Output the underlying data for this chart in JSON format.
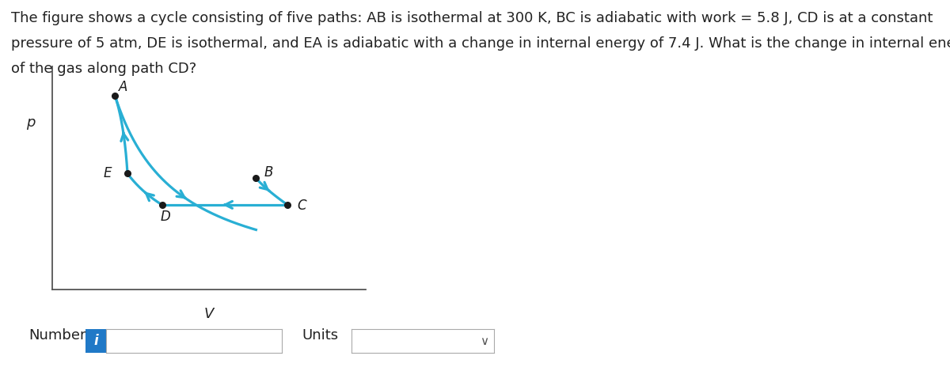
{
  "title_line1": "The figure shows a cycle consisting of five paths: AB is isothermal at 300 K, BC is adiabatic with work = 5.8 J, CD is at a constant",
  "title_line2": "pressure of 5 atm, DE is isothermal, and EA is adiabatic with a change in internal energy of 7.4 J. What is the change in internal energy",
  "title_line3": "of the gas along path CD?",
  "title_fontsize": 13.0,
  "xlabel": "V",
  "ylabel": "p",
  "bg_color": "#ffffff",
  "curve_color": "#29afd4",
  "point_color": "#1a1a1a",
  "label_fontsize": 12,
  "axis_label_fontsize": 13,
  "number_label": "Number",
  "units_label": "Units",
  "points": {
    "A": [
      0.2,
      0.87
    ],
    "B": [
      0.65,
      0.5
    ],
    "C": [
      0.75,
      0.38
    ],
    "D": [
      0.35,
      0.38
    ],
    "E": [
      0.24,
      0.52
    ]
  }
}
